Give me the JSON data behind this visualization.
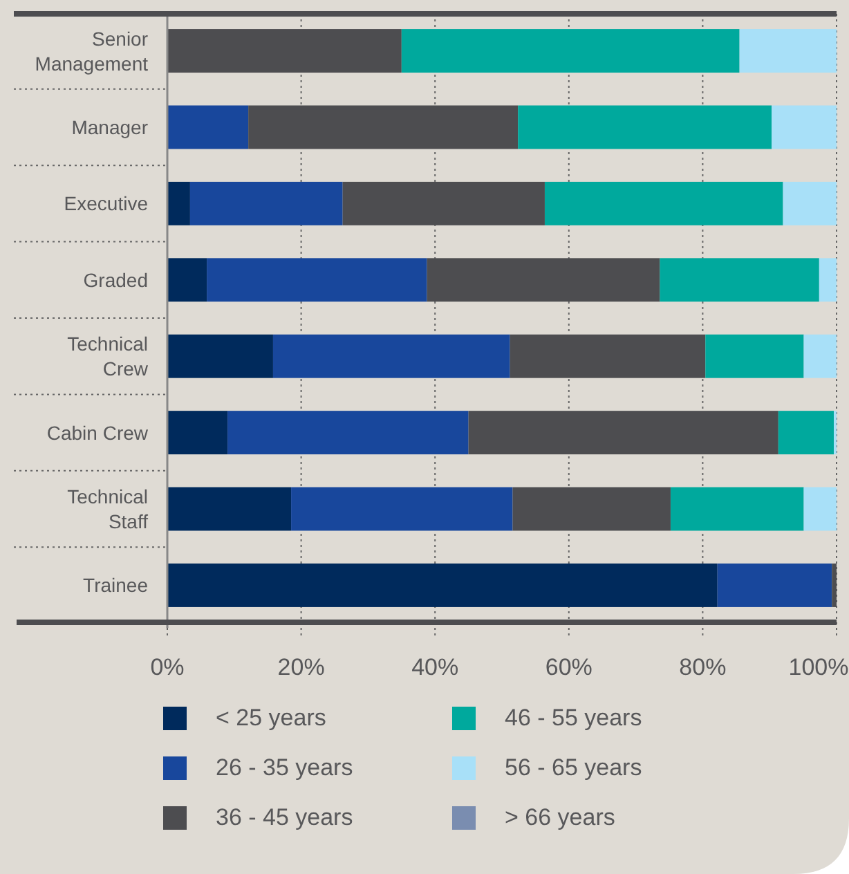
{
  "chart_data": {
    "type": "bar",
    "orientation": "horizontal",
    "stacked": true,
    "categories": [
      "Senior\nManagement",
      "Manager",
      "Executive",
      "Graded",
      "Technical\nCrew",
      "Cabin Crew",
      "Technical\nStaff",
      "Trainee"
    ],
    "series": [
      {
        "name": "< 25 years",
        "color": "#002a5c",
        "values": [
          0,
          0,
          3.4,
          5.9,
          15.8,
          9.0,
          18.5,
          82.2
        ]
      },
      {
        "name": "26 - 35 years",
        "color": "#18479c",
        "values": [
          0,
          12.1,
          22.8,
          32.9,
          35.4,
          36.0,
          33.1,
          17.1
        ]
      },
      {
        "name": "36 - 45 years",
        "color": "#4d4d50",
        "values": [
          35.0,
          40.3,
          30.2,
          34.8,
          29.2,
          46.3,
          23.6,
          0.7
        ]
      },
      {
        "name": "46 - 55 years",
        "color": "#00a99d",
        "values": [
          50.5,
          37.9,
          35.6,
          23.8,
          14.7,
          8.3,
          19.9,
          0
        ]
      },
      {
        "name": "56 - 65 years",
        "color": "#a8e0f8",
        "values": [
          14.5,
          9.7,
          8.0,
          2.6,
          4.9,
          0.4,
          4.9,
          0
        ]
      },
      {
        "name": "> 66 years",
        "color": "#7a8db0",
        "values": [
          0,
          0,
          0,
          0,
          0,
          0,
          0,
          0
        ]
      }
    ],
    "xlim": [
      0,
      100
    ],
    "xticks": [
      {
        "value": 0,
        "label": "0%"
      },
      {
        "value": 20,
        "label": "20%"
      },
      {
        "value": 40,
        "label": "40%"
      },
      {
        "value": 60,
        "label": "60%"
      },
      {
        "value": 80,
        "label": "80%"
      },
      {
        "value": 100,
        "label": "100%"
      }
    ],
    "grid": "x",
    "legend": "bottom"
  }
}
